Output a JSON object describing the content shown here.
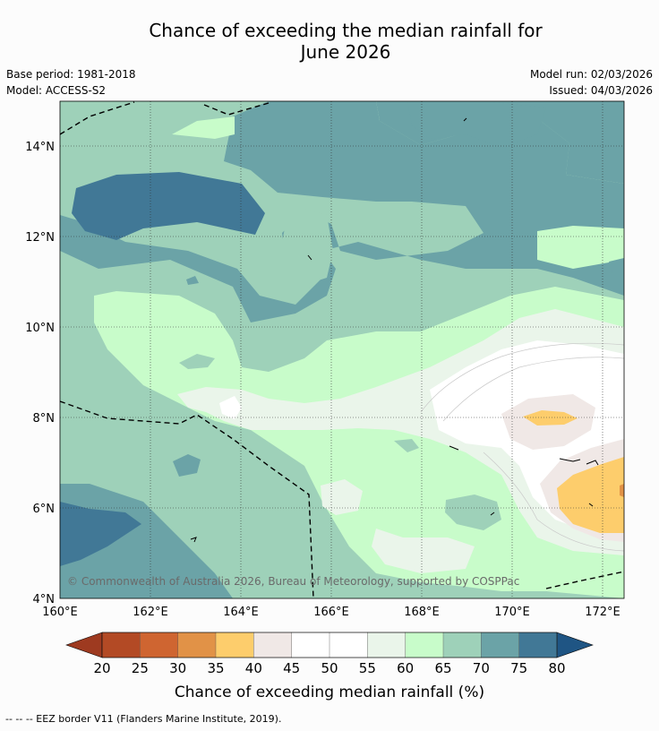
{
  "title_line1": "Chance of exceeding the median rainfall for",
  "title_line2": "June 2026",
  "base_period": "Base period: 1981-2018",
  "model": "Model: ACCESS-S2",
  "model_run": "Model run: 02/03/2026",
  "issued": "Issued: 04/03/2026",
  "copyright": "© Commonwealth of Australia 2026, Bureau of Meteorology, supported by COSPPac",
  "lat_labels": [
    "14°N",
    "12°N",
    "10°N",
    "8°N",
    "6°N",
    "4°N"
  ],
  "lon_labels": [
    "160°E",
    "162°E",
    "164°E",
    "166°E",
    "168°E",
    "170°E",
    "172°E"
  ],
  "colorbar": {
    "ticks": [
      "20",
      "25",
      "30",
      "35",
      "40",
      "45",
      "50",
      "55",
      "60",
      "65",
      "70",
      "75",
      "80"
    ],
    "colors": [
      "#b34a25",
      "#cf6531",
      "#e19247",
      "#fdcd6c",
      "#f0e8e6",
      "#ffffff",
      "#ffffff",
      "#eaf5ea",
      "#c8fcca",
      "#9ed1b9",
      "#6ba3a7",
      "#417896"
    ],
    "under_color": "#9e3a20",
    "over_color": "#1f5584",
    "label": "Chance of exceeding median rainfall (%)"
  },
  "footer": "-- -- -- EEZ border V11 (Flanders Marine Institute, 2019)."
}
